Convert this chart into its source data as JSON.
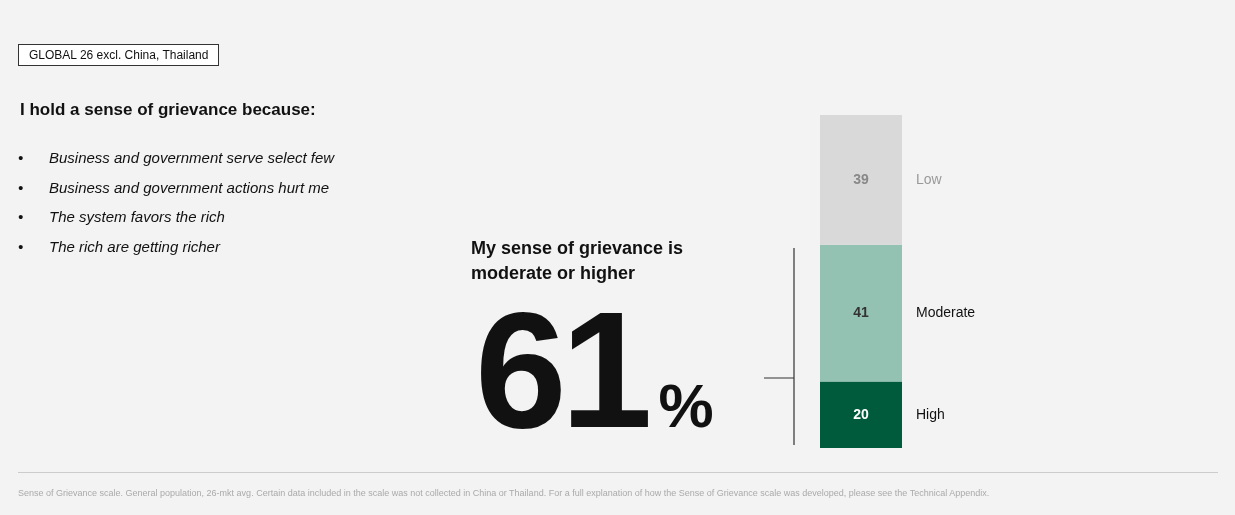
{
  "chart_data": {
    "type": "bar",
    "title": "I hold a sense of grievance because:",
    "categories": [
      null
    ],
    "stacked": true,
    "data_labels": true,
    "tick_labels": false,
    "series": [
      {
        "name": "High",
        "color": "#005a3c",
        "values": [
          20
        ]
      },
      {
        "name": "Moderate",
        "color": "#93c2b3",
        "values": [
          41
        ]
      },
      {
        "name": "Low",
        "color": "#d9d9d9",
        "values": [
          39
        ]
      }
    ],
    "annotations": [
      "GLOBAL 26 excl. China, Thailand",
      "•\tBusiness and government serve select few",
      "•\tBusiness and government actions hurt me",
      "•\tThe system favors the rich",
      "•\tThe rich are getting richer",
      "My sense of grievance is moderate or higher",
      "61%",
      "Sense of Grievance scale. General population, 26-mkt avg. Certain data included in the scale was not collected in China or Thailand. For a full explanation of how the Sense of Grievance scale was developed, please see the Technical Appendix."
    ]
  }
}
